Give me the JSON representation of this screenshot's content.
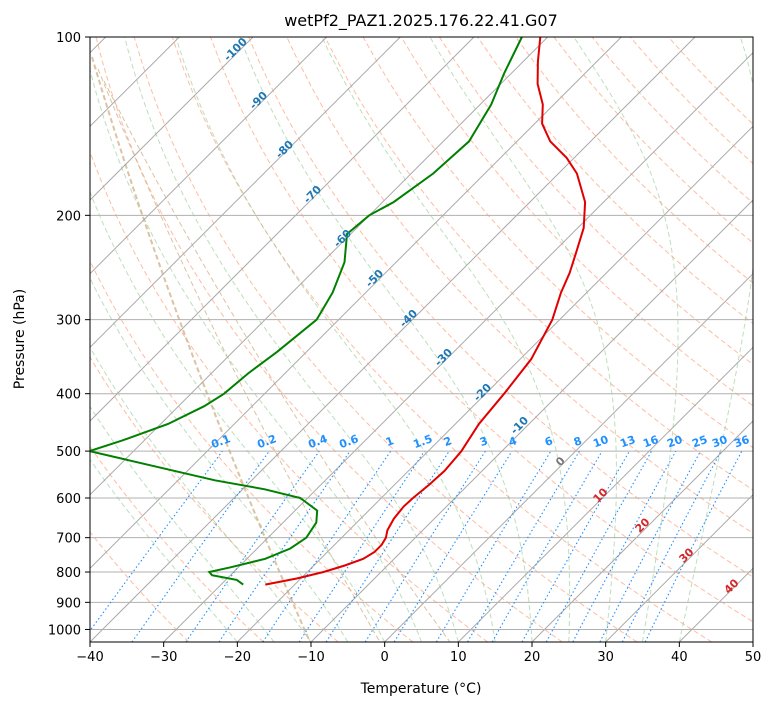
{
  "chart_data": {
    "type": "line",
    "title": "wetPf2_PAZ1.2025.176.22.41.G07",
    "xlabel": "Temperature (°C)",
    "ylabel": "Pressure (hPa)",
    "xlim": [
      -40,
      50
    ],
    "ylim": [
      1050,
      100
    ],
    "y_scale": "log",
    "x_ticks": [
      -40,
      -30,
      -20,
      -10,
      0,
      10,
      20,
      30,
      40,
      50
    ],
    "x_tick_labels": [
      "−40",
      "−30",
      "−20",
      "−10",
      "0",
      "10",
      "20",
      "30",
      "40",
      "50"
    ],
    "y_ticks": [
      100,
      200,
      300,
      400,
      500,
      600,
      700,
      800,
      900,
      1000
    ],
    "y_tick_labels": [
      "100",
      "200",
      "300",
      "400",
      "500",
      "600",
      "700",
      "800",
      "900",
      "1000"
    ],
    "grid": true,
    "skew": 45,
    "isotherm_labels": {
      "values": [
        "-100",
        "-90",
        "-80",
        "-70",
        "-60",
        "-50",
        "-40",
        "-30",
        "-20",
        "-10"
      ],
      "color": "#1f77b4"
    },
    "mixing_ratio_labels": {
      "values": [
        "0.1",
        "0.2",
        "0.4",
        "0.6",
        "1",
        "1.5",
        "2",
        "3",
        "4",
        "6",
        "8",
        "10",
        "13",
        "16",
        "20",
        "25",
        "30",
        "36"
      ],
      "color": "#1e90ff"
    },
    "warm_isotherm_labels": {
      "values": [
        "0",
        "10",
        "20",
        "30",
        "40"
      ],
      "colors": [
        "#777777",
        "#d62728",
        "#d62728",
        "#d62728",
        "#d62728"
      ]
    },
    "series": [
      {
        "color": "#e00000",
        "points": [
          {
            "p": 840,
            "t": -24.0
          },
          {
            "p": 820,
            "t": -20.5
          },
          {
            "p": 800,
            "t": -17.8
          },
          {
            "p": 780,
            "t": -15.8
          },
          {
            "p": 760,
            "t": -14.2
          },
          {
            "p": 740,
            "t": -13.6
          },
          {
            "p": 720,
            "t": -13.6
          },
          {
            "p": 700,
            "t": -14.0
          },
          {
            "p": 680,
            "t": -14.8
          },
          {
            "p": 650,
            "t": -15.5
          },
          {
            "p": 620,
            "t": -15.8
          },
          {
            "p": 600,
            "t": -15.7
          },
          {
            "p": 570,
            "t": -15.3
          },
          {
            "p": 540,
            "t": -15.1
          },
          {
            "p": 500,
            "t": -15.5
          },
          {
            "p": 450,
            "t": -16.8
          },
          {
            "p": 400,
            "t": -17.5
          },
          {
            "p": 350,
            "t": -18.5
          },
          {
            "p": 300,
            "t": -21.0
          },
          {
            "p": 270,
            "t": -23.5
          },
          {
            "p": 250,
            "t": -25.0
          },
          {
            "p": 230,
            "t": -27.0
          },
          {
            "p": 210,
            "t": -29.2
          },
          {
            "p": 190,
            "t": -32.5
          },
          {
            "p": 170,
            "t": -37.5
          },
          {
            "p": 160,
            "t": -41.0
          },
          {
            "p": 150,
            "t": -45.5
          },
          {
            "p": 140,
            "t": -49.0
          },
          {
            "p": 130,
            "t": -51.5
          },
          {
            "p": 120,
            "t": -55.0
          },
          {
            "p": 110,
            "t": -58.0
          },
          {
            "p": 100,
            "t": -61.0
          }
        ]
      },
      {
        "color": "#008000",
        "points": [
          {
            "p": 840,
            "t": -27.0
          },
          {
            "p": 825,
            "t": -28.5
          },
          {
            "p": 810,
            "t": -32.5
          },
          {
            "p": 800,
            "t": -33.3
          },
          {
            "p": 785,
            "t": -31.0
          },
          {
            "p": 760,
            "t": -27.5
          },
          {
            "p": 730,
            "t": -25.5
          },
          {
            "p": 700,
            "t": -24.8
          },
          {
            "p": 660,
            "t": -25.5
          },
          {
            "p": 630,
            "t": -27.0
          },
          {
            "p": 600,
            "t": -31.0
          },
          {
            "p": 580,
            "t": -37.0
          },
          {
            "p": 560,
            "t": -45.0
          },
          {
            "p": 500,
            "t": -66.0
          },
          {
            "p": 480,
            "t": -63.0
          },
          {
            "p": 450,
            "t": -59.0
          },
          {
            "p": 420,
            "t": -56.5
          },
          {
            "p": 400,
            "t": -55.5
          },
          {
            "p": 370,
            "t": -55.0
          },
          {
            "p": 340,
            "t": -54.0
          },
          {
            "p": 300,
            "t": -53.0
          },
          {
            "p": 270,
            "t": -54.5
          },
          {
            "p": 240,
            "t": -57.0
          },
          {
            "p": 215,
            "t": -60.5
          },
          {
            "p": 200,
            "t": -60.0
          },
          {
            "p": 190,
            "t": -58.5
          },
          {
            "p": 170,
            "t": -57.0
          },
          {
            "p": 150,
            "t": -56.5
          },
          {
            "p": 130,
            "t": -58.5
          },
          {
            "p": 115,
            "t": -61.0
          },
          {
            "p": 100,
            "t": -63.5
          }
        ]
      }
    ]
  }
}
